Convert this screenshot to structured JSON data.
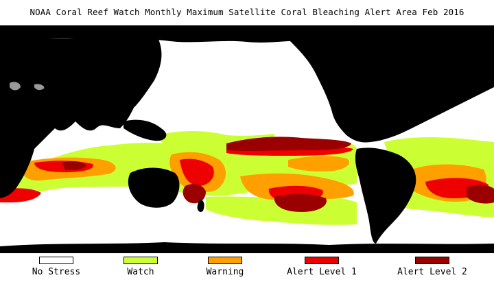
{
  "title": "NOAA Coral Reef Watch Monthly Maximum Satellite Coral Bleaching Alert Area    Feb 2016",
  "colors": {
    "land": "#000000",
    "no_data": "#ffffff",
    "lakes": "#9a9a9a",
    "no_stress": "#ffffff",
    "watch": "#ccff33",
    "warning": "#ffa000",
    "alert1": "#ee0000",
    "alert2": "#9b0000"
  },
  "legend": [
    {
      "label": "No Stress",
      "color": "#ffffff"
    },
    {
      "label": "Watch",
      "color": "#ccff33"
    },
    {
      "label": "Warning",
      "color": "#ffa000"
    },
    {
      "label": "Alert Level 1",
      "color": "#ee0000"
    },
    {
      "label": "Alert Level 2",
      "color": "#9b0000"
    }
  ]
}
